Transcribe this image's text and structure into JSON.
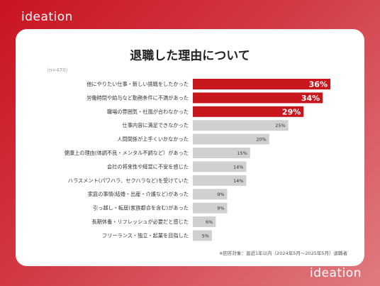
{
  "brand": "ideation",
  "title": "退職した理由について",
  "sample_note": "（n=470）",
  "footnote": "※回答対象：直近1年以内（2024年5月〜2025年5月）退職者",
  "colors": {
    "highlight": "#c8161d",
    "normal": "#d0d0d0",
    "accent_text": "#ffffff",
    "value_text": "#333333"
  },
  "chart_data": {
    "type": "bar",
    "orientation": "horizontal",
    "categories": [
      "他にやりたい仕事・新しい挑戦をしたかった",
      "労働時間や給与など勤務条件に不満があった",
      "職場の雰囲気・社風が合わなかった",
      "仕事内容に満足できなかった",
      "人間関係が上手くいかなかった",
      "健康上の理由(体調不良・メンタル不調など）があった",
      "会社の将来性や経営に不安を感じた",
      "ハラスメント(パワハラ、セクハラなど)を受けていた",
      "家庭の事情(結婚・出産・介護など)があった",
      "引っ越し・転居(家族都合を含む)があった",
      "長期休養・リフレッシュが必要だと感じた",
      "フリーランス・独立・起業を目指した"
    ],
    "values": [
      36,
      34,
      29,
      25,
      20,
      15,
      14,
      14,
      9,
      9,
      6,
      5
    ],
    "value_labels": [
      "36%",
      "34%",
      "29%",
      "25%",
      "20%",
      "15%",
      "14%",
      "14%",
      "9%",
      "9%",
      "6%",
      "5%"
    ],
    "highlighted_count": 3,
    "xlim": [
      0,
      36
    ],
    "grid": false,
    "legend": "none"
  }
}
